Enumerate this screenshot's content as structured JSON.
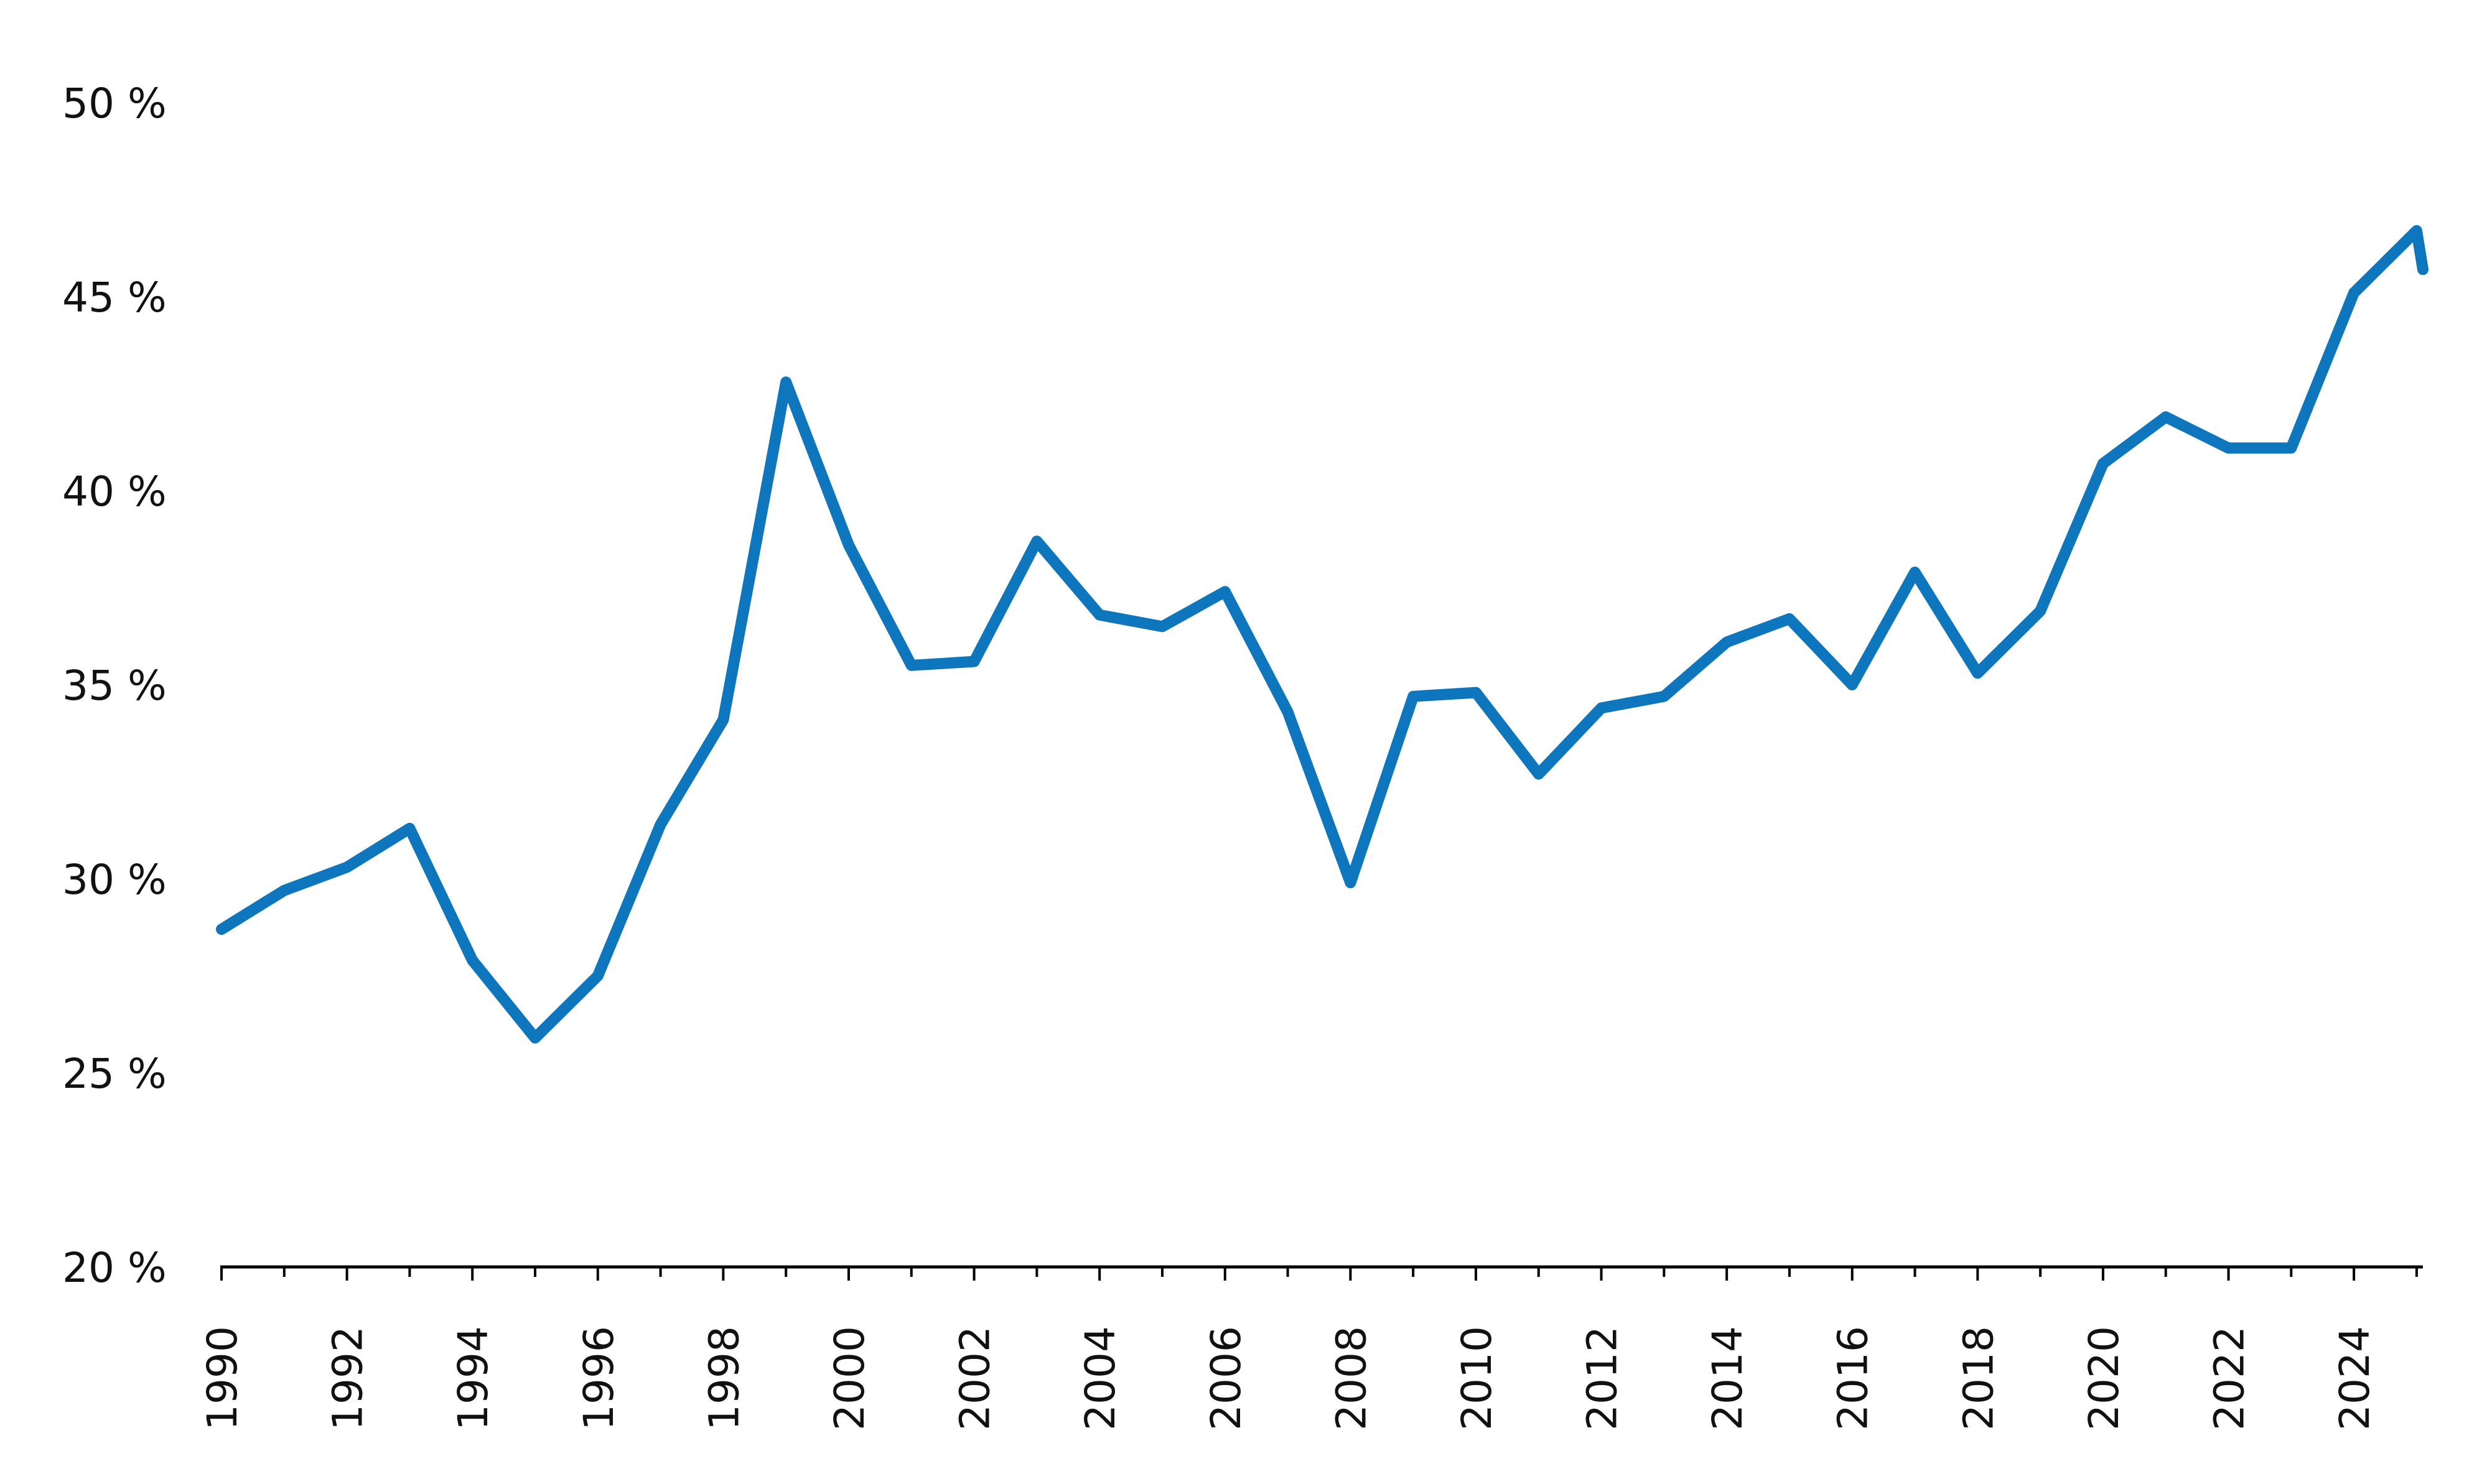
{
  "chart_data": {
    "type": "line",
    "title": "",
    "xlabel": "",
    "ylabel": "",
    "xlim": [
      1990,
      2025.1
    ],
    "ylim": [
      20,
      50
    ],
    "y_ticks": [
      20,
      25,
      30,
      35,
      40,
      45,
      50
    ],
    "y_tick_labels": [
      "20 %",
      "25 %",
      "30 %",
      "35 %",
      "40 %",
      "45 %",
      "50 %"
    ],
    "x_ticks": [
      1990,
      1992,
      1994,
      1996,
      1998,
      2000,
      2002,
      2004,
      2006,
      2008,
      2010,
      2012,
      2014,
      2016,
      2018,
      2020,
      2022,
      2024
    ],
    "x_tick_labels": [
      "1990",
      "1992",
      "1994",
      "1996",
      "1998",
      "2000",
      "2002",
      "2004",
      "2006",
      "2008",
      "2010",
      "2012",
      "2014",
      "2016",
      "2018",
      "2020",
      "2022",
      "2024"
    ],
    "grid": false,
    "legend": "none",
    "line_color": "#0e76bc",
    "series": [
      {
        "x": [
          1990,
          1991,
          1992,
          1993,
          1994,
          1995,
          1996,
          1997,
          1998,
          1999,
          2000,
          2001,
          2002,
          2003,
          2004,
          2005,
          2006,
          2007,
          2008,
          2009,
          2010,
          2011,
          2012,
          2013,
          2014,
          2015,
          2016,
          2017,
          2018,
          2019,
          2020,
          2021,
          2022,
          2023,
          2024,
          2025,
          2025.1
        ],
        "values": [
          28.7,
          29.7,
          30.3,
          31.3,
          27.9,
          25.9,
          27.5,
          31.4,
          34.1,
          42.8,
          38.6,
          35.5,
          35.6,
          38.7,
          36.8,
          36.5,
          37.4,
          34.3,
          29.9,
          34.7,
          34.8,
          32.7,
          34.4,
          34.7,
          36.1,
          36.7,
          35.0,
          37.9,
          35.3,
          36.9,
          40.7,
          41.9,
          41.1,
          41.1,
          45.1,
          46.7,
          45.7
        ]
      }
    ]
  }
}
